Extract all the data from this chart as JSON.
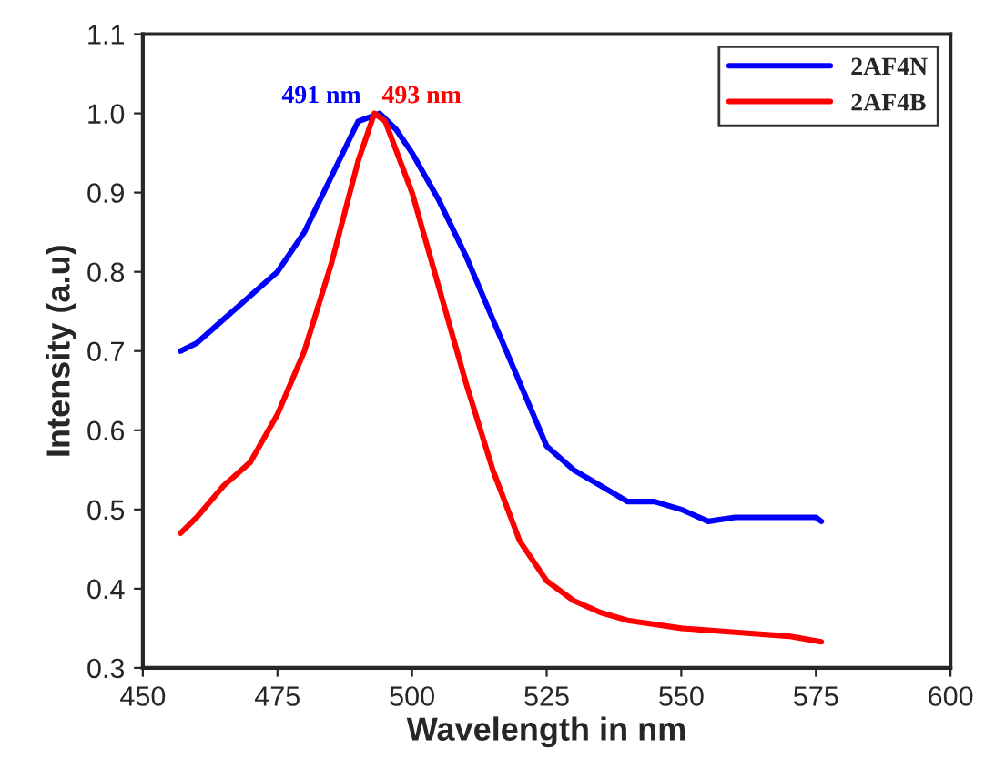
{
  "chart_data": {
    "type": "line",
    "xlabel": "Wavelength in nm",
    "ylabel": "Intensity (a.u)",
    "xlim": [
      450,
      600
    ],
    "xticks": [
      450,
      475,
      500,
      525,
      550,
      575,
      600
    ],
    "ylim": [
      0.3,
      1.1
    ],
    "yticks": [
      0.3,
      0.4,
      0.5,
      0.6,
      0.7,
      0.8,
      0.9,
      {
        "value": 1.0,
        "label": "1.0"
      },
      1.1
    ],
    "grid": false,
    "legend": "top right",
    "marker": "none",
    "line_style": "solid",
    "series": [
      {
        "name": "2AF4N",
        "color": "#0000ff",
        "x": [
          457,
          460,
          465,
          470,
          475,
          480,
          485,
          490,
          494,
          497,
          500,
          505,
          510,
          515,
          520,
          525,
          530,
          535,
          540,
          545,
          550,
          555,
          560,
          565,
          570,
          575,
          576
        ],
        "values": [
          0.7,
          0.71,
          0.74,
          0.77,
          0.8,
          0.85,
          0.92,
          0.99,
          1.0,
          0.98,
          0.95,
          0.89,
          0.82,
          0.74,
          0.66,
          0.58,
          0.55,
          0.53,
          0.51,
          0.51,
          0.5,
          0.485,
          0.49,
          0.49,
          0.49,
          0.49,
          0.485
        ]
      },
      {
        "name": "2AF4B",
        "color": "#ff0000",
        "x": [
          457,
          460,
          465,
          470,
          475,
          480,
          485,
          490,
          493,
          495,
          500,
          505,
          510,
          515,
          520,
          525,
          530,
          535,
          540,
          545,
          550,
          560,
          570,
          576
        ],
        "values": [
          0.47,
          0.49,
          0.53,
          0.56,
          0.62,
          0.7,
          0.81,
          0.94,
          1.0,
          0.99,
          0.9,
          0.78,
          0.66,
          0.55,
          0.46,
          0.41,
          0.385,
          0.37,
          0.36,
          0.355,
          0.35,
          0.345,
          0.34,
          0.333
        ]
      }
    ],
    "annotations": [
      {
        "text": "491 nm",
        "x": 491,
        "y": 1.0
      },
      {
        "text": "493 nm",
        "x": 493,
        "y": 1.0
      }
    ]
  }
}
